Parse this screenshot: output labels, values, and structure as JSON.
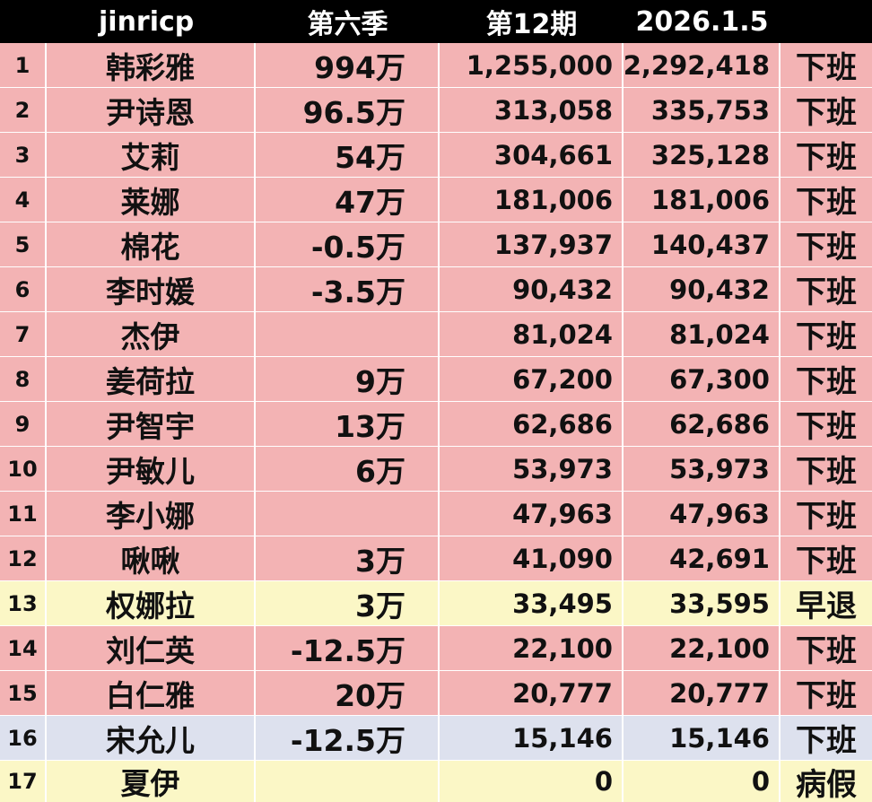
{
  "header": {
    "rank": "",
    "name": "jinricp",
    "season": "第六季",
    "period": "第12期",
    "date": "2026.1.5",
    "status": ""
  },
  "colors": {
    "header_bg": "#000000",
    "header_text": "#ffffff",
    "pink": "#f3b3b4",
    "yellow": "#fbf7c6",
    "lavender": "#dde1ee",
    "divider": "#ffffff"
  },
  "rows": [
    {
      "rank": "1",
      "name": "韩彩雅",
      "season": "994万",
      "period": "1,255,000",
      "date": "2,292,418",
      "status": "下班",
      "color": "pink"
    },
    {
      "rank": "2",
      "name": "尹诗恩",
      "season": "96.5万",
      "period": "313,058",
      "date": "335,753",
      "status": "下班",
      "color": "pink"
    },
    {
      "rank": "3",
      "name": "艾莉",
      "season": "54万",
      "period": "304,661",
      "date": "325,128",
      "status": "下班",
      "color": "pink"
    },
    {
      "rank": "4",
      "name": "莱娜",
      "season": "47万",
      "period": "181,006",
      "date": "181,006",
      "status": "下班",
      "color": "pink"
    },
    {
      "rank": "5",
      "name": "棉花",
      "season": "-0.5万",
      "period": "137,937",
      "date": "140,437",
      "status": "下班",
      "color": "pink"
    },
    {
      "rank": "6",
      "name": "李时媛",
      "season": "-3.5万",
      "period": "90,432",
      "date": "90,432",
      "status": "下班",
      "color": "pink"
    },
    {
      "rank": "7",
      "name": "杰伊",
      "season": "",
      "period": "81,024",
      "date": "81,024",
      "status": "下班",
      "color": "pink"
    },
    {
      "rank": "8",
      "name": "姜荷拉",
      "season": "9万",
      "period": "67,200",
      "date": "67,300",
      "status": "下班",
      "color": "pink"
    },
    {
      "rank": "9",
      "name": "尹智宇",
      "season": "13万",
      "period": "62,686",
      "date": "62,686",
      "status": "下班",
      "color": "pink"
    },
    {
      "rank": "10",
      "name": "尹敏儿",
      "season": "6万",
      "period": "53,973",
      "date": "53,973",
      "status": "下班",
      "color": "pink"
    },
    {
      "rank": "11",
      "name": "李小娜",
      "season": "",
      "period": "47,963",
      "date": "47,963",
      "status": "下班",
      "color": "pink"
    },
    {
      "rank": "12",
      "name": "啾啾",
      "season": "3万",
      "period": "41,090",
      "date": "42,691",
      "status": "下班",
      "color": "pink"
    },
    {
      "rank": "13",
      "name": "权娜拉",
      "season": "3万",
      "period": "33,495",
      "date": "33,595",
      "status": "早退",
      "color": "yellow"
    },
    {
      "rank": "14",
      "name": "刘仁英",
      "season": "-12.5万",
      "period": "22,100",
      "date": "22,100",
      "status": "下班",
      "color": "pink"
    },
    {
      "rank": "15",
      "name": "白仁雅",
      "season": "20万",
      "period": "20,777",
      "date": "20,777",
      "status": "下班",
      "color": "pink"
    },
    {
      "rank": "16",
      "name": "宋允儿",
      "season": "-12.5万",
      "period": "15,146",
      "date": "15,146",
      "status": "下班",
      "color": "lavender"
    },
    {
      "rank": "17",
      "name": "夏伊",
      "season": "",
      "period": "0",
      "date": "0",
      "status": "病假",
      "color": "yellow"
    }
  ]
}
